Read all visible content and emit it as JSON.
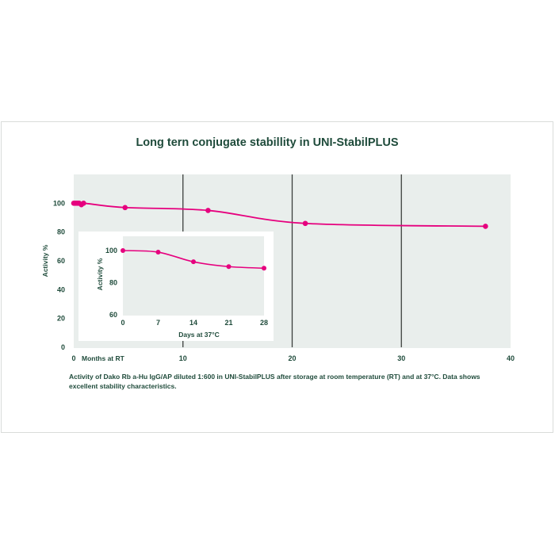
{
  "chart_data": [
    {
      "id": "main",
      "type": "line",
      "title": "Long tern conjugate stabillity in UNI-StabilPLUS",
      "xlabel": "Months at RT",
      "ylabel": "Activity %",
      "xlim": [
        0,
        40
      ],
      "ylim": [
        0,
        120
      ],
      "x_ticks": [
        "0",
        "10",
        "20",
        "30",
        "40"
      ],
      "y_ticks": [
        "0",
        "20",
        "40",
        "60",
        "80",
        "100"
      ],
      "vertical_gridlines_at": [
        10,
        20,
        30
      ],
      "series": [
        {
          "color": "#e6007e",
          "points": [
            {
              "x": 0.0,
              "y": 100
            },
            {
              "x": 0.1,
              "y": 100
            },
            {
              "x": 0.2,
              "y": 100
            },
            {
              "x": 0.3,
              "y": 100
            },
            {
              "x": 0.4,
              "y": 100
            },
            {
              "x": 0.5,
              "y": 100
            },
            {
              "x": 0.7,
              "y": 99
            },
            {
              "x": 0.9,
              "y": 100
            },
            {
              "x": 4.7,
              "y": 97
            },
            {
              "x": 12.3,
              "y": 95
            },
            {
              "x": 21.2,
              "y": 86
            },
            {
              "x": 37.7,
              "y": 84
            }
          ]
        }
      ]
    },
    {
      "id": "inset",
      "type": "line",
      "xlabel": "Days at 37°C",
      "ylabel": "Activity %",
      "xlim": [
        0,
        28
      ],
      "ylim": [
        60,
        100
      ],
      "x_ticks": [
        "0",
        "7",
        "14",
        "21",
        "28"
      ],
      "y_ticks": [
        "60",
        "80",
        "100"
      ],
      "series": [
        {
          "color": "#e6007e",
          "points": [
            {
              "x": 0,
              "y": 100
            },
            {
              "x": 7,
              "y": 99
            },
            {
              "x": 14,
              "y": 93
            },
            {
              "x": 21,
              "y": 90
            },
            {
              "x": 28,
              "y": 89
            }
          ]
        }
      ]
    }
  ],
  "caption": {
    "line1": "Activity of Dako Rb a-Hu IgG/AP diluted 1:600 in UNI-StabilPLUS after storage at room temperature (RT) and at 37°C. Data shows",
    "line2": "excellent stability characteristics."
  },
  "colors": {
    "plot_background": "#e9eeec",
    "series": "#e6007e",
    "text": "#1f4b3b",
    "gridline": "#3b3f3d"
  }
}
